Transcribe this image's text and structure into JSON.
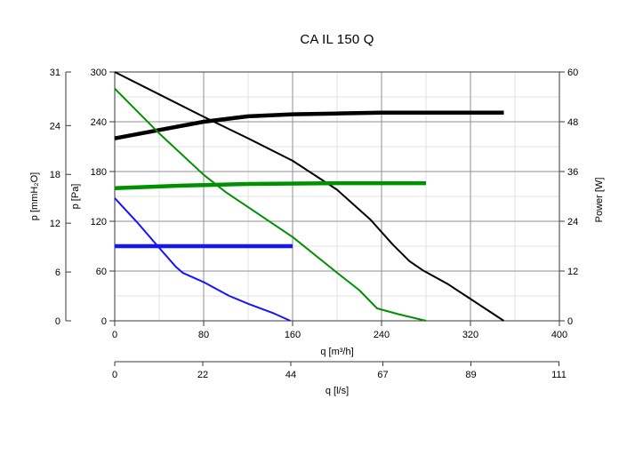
{
  "chart_data": {
    "type": "line",
    "title": "CA IL 150 Q",
    "plot": {
      "x_min": 0,
      "x_max": 400,
      "pa_min": 0,
      "pa_max": 300,
      "w_min": 0,
      "w_max": 60
    },
    "grid": {
      "x_major": [
        80,
        160,
        240,
        320
      ],
      "x_minor": [
        40,
        120,
        200,
        280,
        360
      ],
      "pa_major": [
        60,
        120,
        180,
        240
      ],
      "pa_minor": [
        30,
        90,
        150,
        210,
        270
      ]
    },
    "axes": {
      "y_mmh2o": {
        "label": "p [mmH₂O]",
        "ticks": [
          0,
          6,
          12,
          18,
          24,
          31
        ],
        "pa_per_unit": 9.80665
      },
      "y_pa": {
        "label": "p [Pa]",
        "ticks": [
          0,
          60,
          120,
          180,
          240,
          300
        ]
      },
      "y_power": {
        "label": "Power [W]",
        "ticks": [
          0,
          12,
          24,
          36,
          48,
          60
        ]
      },
      "x_m3h": {
        "label": "q [m³/h]",
        "ticks": [
          0,
          80,
          160,
          240,
          320,
          400
        ]
      },
      "x_ls": {
        "label": "q [l/s]",
        "ticks": [
          0,
          22,
          44,
          67,
          89,
          111
        ],
        "m3h_per_unit": 3.6
      }
    },
    "series": [
      {
        "name": "pressure-speed-max",
        "color": "#000000",
        "width": 2,
        "y_axis": "pa",
        "points": [
          [
            0,
            300
          ],
          [
            40,
            273
          ],
          [
            80,
            246
          ],
          [
            120,
            220
          ],
          [
            160,
            193
          ],
          [
            200,
            158
          ],
          [
            230,
            122
          ],
          [
            250,
            92
          ],
          [
            265,
            72
          ],
          [
            277,
            61
          ],
          [
            300,
            44
          ],
          [
            325,
            22
          ],
          [
            350,
            0
          ]
        ]
      },
      {
        "name": "power-speed-max",
        "color": "#000000",
        "width": 4.5,
        "y_axis": "w",
        "points": [
          [
            0,
            44
          ],
          [
            40,
            46
          ],
          [
            80,
            48
          ],
          [
            120,
            49.3
          ],
          [
            160,
            49.8
          ],
          [
            200,
            50
          ],
          [
            240,
            50.2
          ],
          [
            280,
            50.2
          ],
          [
            320,
            50.2
          ],
          [
            350,
            50.2
          ]
        ]
      },
      {
        "name": "pressure-speed-mid",
        "color": "#009100",
        "width": 2,
        "y_axis": "pa",
        "points": [
          [
            0,
            280
          ],
          [
            40,
            226
          ],
          [
            80,
            176
          ],
          [
            100,
            155
          ],
          [
            120,
            137
          ],
          [
            160,
            101
          ],
          [
            200,
            58
          ],
          [
            220,
            37
          ],
          [
            236,
            15
          ],
          [
            255,
            8
          ],
          [
            280,
            0
          ]
        ]
      },
      {
        "name": "power-speed-mid",
        "color": "#009100",
        "width": 4.5,
        "y_axis": "w",
        "points": [
          [
            0,
            32
          ],
          [
            60,
            32.6
          ],
          [
            120,
            33
          ],
          [
            200,
            33.2
          ],
          [
            280,
            33.2
          ]
        ]
      },
      {
        "name": "pressure-speed-min",
        "color": "#1414FF",
        "width": 2,
        "y_axis": "pa",
        "points": [
          [
            0,
            148
          ],
          [
            20,
            119
          ],
          [
            40,
            88
          ],
          [
            55,
            65
          ],
          [
            61,
            58
          ],
          [
            81,
            46
          ],
          [
            103,
            30
          ],
          [
            121,
            20
          ],
          [
            143,
            9
          ],
          [
            158,
            0
          ]
        ]
      },
      {
        "name": "power-speed-min",
        "color": "#1414FF",
        "width": 4.5,
        "y_axis": "w",
        "points": [
          [
            0,
            18
          ],
          [
            160,
            18
          ]
        ]
      }
    ],
    "colors": {
      "grid_major": "#8f8f8f",
      "grid_minor": "#e2e2e2",
      "axis": "#3a3a3a",
      "text": "#000000"
    },
    "legend": {
      "visible": false
    }
  }
}
